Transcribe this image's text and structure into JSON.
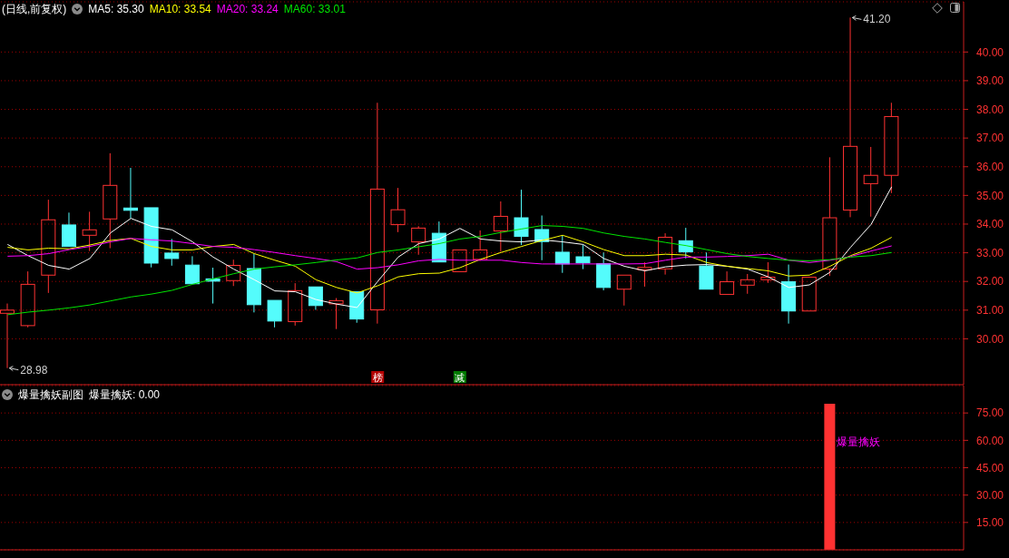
{
  "chart_data": [
    {
      "type": "candlestick",
      "title": "(日线,前复权)",
      "categories": [
        null,
        null,
        null,
        null,
        null,
        null,
        null,
        null,
        null,
        null,
        null,
        null,
        null,
        null,
        null,
        null,
        null,
        null,
        null,
        null,
        null,
        null,
        null,
        null,
        null,
        null,
        null,
        null,
        null,
        null,
        null,
        null,
        null,
        null,
        null,
        null,
        null,
        null,
        null,
        null,
        null,
        null,
        null,
        null,
        null,
        null,
        null
      ],
      "ohlc": [
        [
          30.89,
          31.23,
          28.98,
          31.0
        ],
        [
          30.46,
          32.35,
          30.4,
          31.9
        ],
        [
          32.22,
          34.85,
          31.6,
          34.15
        ],
        [
          33.97,
          34.4,
          33.22,
          33.22
        ],
        [
          33.61,
          34.43,
          33.06,
          33.8
        ],
        [
          34.18,
          36.47,
          33.16,
          35.35
        ],
        [
          34.56,
          35.96,
          34.2,
          34.48
        ],
        [
          34.57,
          34.57,
          32.49,
          32.64
        ],
        [
          32.99,
          33.48,
          32.55,
          32.8
        ],
        [
          32.57,
          32.88,
          31.92,
          31.92
        ],
        [
          32.09,
          32.48,
          31.23,
          32.01
        ],
        [
          32.03,
          32.76,
          31.84,
          32.56
        ],
        [
          32.45,
          32.97,
          30.92,
          31.19
        ],
        [
          31.34,
          31.34,
          30.4,
          30.62
        ],
        [
          30.6,
          31.94,
          30.46,
          31.68
        ],
        [
          31.81,
          31.81,
          31.01,
          31.16
        ],
        [
          31.22,
          31.42,
          30.34,
          31.33
        ],
        [
          31.64,
          31.64,
          30.56,
          30.69
        ],
        [
          31.01,
          38.23,
          30.53,
          35.22
        ],
        [
          33.98,
          35.26,
          33.72,
          34.5
        ],
        [
          33.38,
          33.93,
          32.93,
          33.86
        ],
        [
          33.68,
          34.09,
          32.68,
          32.68
        ],
        [
          32.34,
          33.1,
          32.34,
          33.1
        ],
        [
          32.77,
          33.78,
          32.72,
          33.1
        ],
        [
          33.76,
          34.79,
          33.04,
          34.27
        ],
        [
          34.22,
          35.2,
          33.27,
          33.57
        ],
        [
          33.81,
          34.3,
          32.74,
          33.39
        ],
        [
          33.02,
          33.61,
          32.3,
          32.61
        ],
        [
          32.86,
          33.27,
          32.43,
          32.65
        ],
        [
          32.62,
          33.01,
          31.69,
          31.79
        ],
        [
          31.73,
          32.22,
          31.16,
          32.22
        ],
        [
          32.41,
          32.67,
          31.82,
          32.49
        ],
        [
          32.44,
          33.68,
          32.24,
          33.54
        ],
        [
          33.42,
          33.87,
          32.8,
          33.03
        ],
        [
          32.54,
          33.01,
          31.73,
          31.73
        ],
        [
          31.55,
          32.35,
          31.55,
          31.99
        ],
        [
          31.87,
          32.26,
          31.57,
          32.06
        ],
        [
          32.06,
          32.67,
          31.95,
          32.15
        ],
        [
          31.99,
          32.59,
          30.53,
          30.97
        ],
        [
          30.97,
          32.15,
          30.97,
          32.15
        ],
        [
          32.43,
          36.33,
          32.19,
          34.22
        ],
        [
          34.49,
          41.2,
          34.24,
          36.71
        ],
        [
          35.41,
          36.69,
          34.26,
          35.7
        ],
        [
          35.7,
          38.23,
          35.08,
          37.75
        ],
        null,
        null,
        null
      ],
      "colors": [
        "#ff3232",
        "#ff3232",
        "#ff3232",
        "#54fcfc",
        "#ff3232",
        "#ff3232",
        "#54fcfc",
        "#54fcfc",
        "#54fcfc",
        "#54fcfc",
        "#54fcfc",
        "#ff3232",
        "#54fcfc",
        "#54fcfc",
        "#ff3232",
        "#54fcfc",
        "#ff3232",
        "#54fcfc",
        "#ff3232",
        "#ff3232",
        "#ff3232",
        "#54fcfc",
        "#ff3232",
        "#ff3232",
        "#ff3232",
        "#54fcfc",
        "#54fcfc",
        "#54fcfc",
        "#54fcfc",
        "#54fcfc",
        "#ff3232",
        "#ff3232",
        "#ff3232",
        "#54fcfc",
        "#54fcfc",
        "#ff3232",
        "#ff3232",
        "#ff3232",
        "#54fcfc",
        "#ff3232",
        "#ff3232",
        "#ff3232",
        "#ff3232",
        "#ff3232",
        null,
        null,
        null
      ],
      "series": [
        {
          "type": "line",
          "name": "MA5: 35.30",
          "color": "#ffffff",
          "values": [
            33.29,
            32.9,
            32.56,
            32.43,
            32.8,
            33.69,
            34.2,
            33.92,
            33.8,
            33.38,
            32.85,
            32.43,
            32.06,
            31.67,
            31.64,
            31.37,
            31.21,
            31.09,
            32.0,
            32.85,
            33.32,
            33.48,
            33.85,
            33.48,
            33.41,
            33.38,
            33.45,
            33.38,
            33.29,
            32.8,
            32.53,
            32.37,
            32.51,
            32.57,
            32.59,
            32.53,
            32.43,
            32.16,
            31.79,
            31.88,
            32.32,
            33.19,
            33.99,
            35.3,
            null,
            null,
            null
          ]
        },
        {
          "type": "line",
          "name": "MA10: 33.54",
          "color": "#ffff00",
          "values": [
            33.19,
            33.1,
            33.16,
            33.14,
            33.27,
            33.43,
            33.5,
            33.22,
            33.1,
            33.1,
            33.22,
            33.29,
            32.97,
            32.74,
            32.53,
            32.06,
            31.79,
            31.6,
            31.85,
            32.16,
            32.27,
            32.29,
            32.48,
            32.77,
            33.01,
            33.22,
            33.43,
            33.61,
            33.38,
            33.11,
            32.9,
            32.9,
            32.95,
            32.92,
            32.66,
            32.53,
            32.45,
            32.37,
            32.19,
            32.22,
            32.53,
            32.9,
            33.16,
            33.54,
            null,
            null,
            null
          ]
        },
        {
          "type": "line",
          "name": "MA20: 33.24",
          "color": "#ff00ff",
          "values": [
            32.88,
            32.9,
            32.97,
            33.11,
            33.22,
            33.38,
            33.5,
            33.45,
            33.41,
            33.32,
            33.22,
            33.19,
            33.11,
            33.01,
            32.9,
            32.8,
            32.69,
            32.43,
            32.48,
            32.58,
            32.72,
            32.77,
            32.74,
            32.74,
            32.74,
            32.66,
            32.61,
            32.61,
            32.61,
            32.61,
            32.61,
            32.62,
            32.74,
            32.85,
            32.85,
            32.87,
            32.9,
            32.95,
            32.74,
            32.66,
            32.74,
            32.87,
            33.06,
            33.24,
            null,
            null,
            null
          ]
        },
        {
          "type": "line",
          "name": "MA60: 33.01",
          "color": "#00e600",
          "values": [
            30.84,
            30.93,
            31.0,
            31.08,
            31.18,
            31.32,
            31.46,
            31.56,
            31.69,
            31.9,
            32.09,
            32.27,
            32.43,
            32.51,
            32.58,
            32.66,
            32.75,
            32.82,
            33.01,
            33.1,
            33.21,
            33.32,
            33.48,
            33.57,
            33.71,
            33.83,
            33.95,
            33.92,
            33.85,
            33.69,
            33.57,
            33.48,
            33.36,
            33.25,
            33.11,
            32.97,
            32.87,
            32.8,
            32.74,
            32.72,
            32.76,
            32.85,
            32.9,
            33.01,
            null,
            null,
            null
          ]
        }
      ],
      "ylim": [
        28.4,
        41.75
      ],
      "yticks": [
        {
          "value": 30,
          "label": "30.00"
        },
        {
          "value": 31,
          "label": "31.00"
        },
        {
          "value": 32,
          "label": "32.00"
        },
        {
          "value": 33,
          "label": "33.00"
        },
        {
          "value": 34,
          "label": "34.00"
        },
        {
          "value": 35,
          "label": "35.00"
        },
        {
          "value": 36,
          "label": "36.00"
        },
        {
          "value": 37,
          "label": "37.00"
        },
        {
          "value": 38,
          "label": "38.00"
        },
        {
          "value": 39,
          "label": "39.00"
        },
        {
          "value": 40,
          "label": "40.00"
        }
      ],
      "grid": "y",
      "legend": "top left",
      "tick_labels": "y",
      "annotations": [
        "41.20",
        "28.98",
        "榜",
        "减"
      ]
    },
    {
      "type": "bar",
      "title": "爆量擒妖副图",
      "categories": [
        null,
        null,
        null,
        null,
        null,
        null,
        null,
        null,
        null,
        null,
        null,
        null,
        null,
        null,
        null,
        null,
        null,
        null,
        null,
        null,
        null,
        null,
        null,
        null,
        null,
        null,
        null,
        null,
        null,
        null,
        null,
        null,
        null,
        null,
        null,
        null,
        null,
        null,
        null,
        null,
        null,
        null,
        null,
        null,
        null,
        null,
        null
      ],
      "series": [
        {
          "color": "#ff3232",
          "values": [
            0,
            0,
            0,
            0,
            0,
            0,
            0,
            0,
            0,
            0,
            0,
            0,
            0,
            0,
            0,
            0,
            0,
            0,
            0,
            0,
            0,
            0,
            0,
            0,
            0,
            0,
            0,
            0,
            0,
            0,
            0,
            0,
            0,
            0,
            0,
            0,
            0,
            0,
            0,
            0,
            80,
            0,
            0,
            0,
            null,
            null,
            null
          ]
        }
      ],
      "ylim": [
        0,
        90
      ],
      "yticks": [
        {
          "value": 15,
          "label": "15.00"
        },
        {
          "value": 30,
          "label": "30.00"
        },
        {
          "value": 45,
          "label": "45.00"
        },
        {
          "value": 60,
          "label": "60.00"
        },
        {
          "value": 75,
          "label": "75.00"
        }
      ],
      "grid": "y",
      "tick_labels": "y",
      "annotations": [
        "爆量擒妖: 0.00",
        "爆量擒妖"
      ]
    }
  ]
}
